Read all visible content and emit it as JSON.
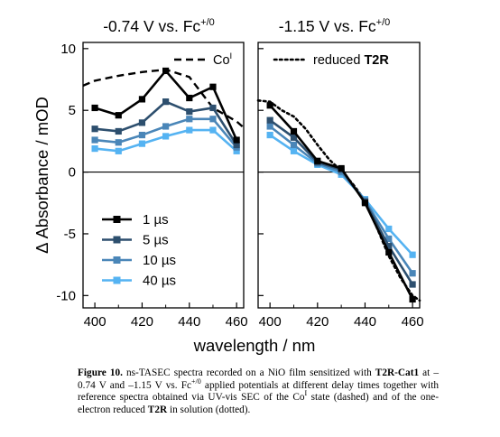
{
  "chart_data": [
    {
      "type": "line",
      "title": "-0.74 V vs. Fc",
      "title_sup": "+/0",
      "xlabel": "wavelength / nm",
      "ylabel": "Δ Absorbance / mOD",
      "xlim": [
        395,
        463
      ],
      "ylim": [
        -11,
        10.5
      ],
      "xticks": [
        400,
        420,
        440,
        460
      ],
      "yticks": [
        -10,
        -5,
        0,
        5,
        10
      ],
      "grid": false,
      "legend_position": "lower-left",
      "series": [
        {
          "name": "1 µs",
          "color": "#000000",
          "marker": "square",
          "x": [
            400,
            410,
            420,
            430,
            440,
            450,
            460
          ],
          "y": [
            5.2,
            4.6,
            5.9,
            8.2,
            6.0,
            6.9,
            2.6
          ]
        },
        {
          "name": "5 µs",
          "color": "#2d4f6e",
          "marker": "square",
          "x": [
            400,
            410,
            420,
            430,
            440,
            450,
            460
          ],
          "y": [
            3.5,
            3.3,
            4.0,
            5.7,
            4.9,
            5.2,
            2.2
          ]
        },
        {
          "name": "10 µs",
          "color": "#4a86b8",
          "marker": "square",
          "x": [
            400,
            410,
            420,
            430,
            440,
            450,
            460
          ],
          "y": [
            2.6,
            2.4,
            3.0,
            3.7,
            4.3,
            4.3,
            2.0
          ]
        },
        {
          "name": "40 µs",
          "color": "#55b3f2",
          "marker": "square",
          "x": [
            400,
            410,
            420,
            430,
            440,
            450,
            460
          ],
          "y": [
            1.9,
            1.7,
            2.3,
            2.9,
            3.4,
            3.4,
            1.7
          ]
        }
      ],
      "reference": {
        "name": "Co",
        "name_sup": "I",
        "style": "dashed",
        "color": "#000000",
        "x": [
          395,
          400,
          410,
          420,
          430,
          440,
          450,
          460,
          463
        ],
        "y": [
          7.0,
          7.4,
          7.8,
          8.1,
          8.3,
          7.7,
          5.2,
          4.1,
          3.6
        ]
      }
    },
    {
      "type": "line",
      "title": "-1.15 V vs. Fc",
      "title_sup": "+/0",
      "xlabel": "wavelength / nm",
      "xlim": [
        395,
        463
      ],
      "ylim": [
        -11,
        10.5
      ],
      "xticks": [
        400,
        420,
        440,
        460
      ],
      "yticks": [
        -10,
        -5,
        0,
        5,
        10
      ],
      "grid": false,
      "series": [
        {
          "name": "1 µs",
          "color": "#000000",
          "marker": "square",
          "x": [
            400,
            410,
            420,
            430,
            440,
            450,
            460
          ],
          "y": [
            5.4,
            3.3,
            0.9,
            0.3,
            -2.5,
            -6.5,
            -10.3
          ]
        },
        {
          "name": "5 µs",
          "color": "#2d4f6e",
          "marker": "square",
          "x": [
            400,
            410,
            420,
            430,
            440,
            450,
            460
          ],
          "y": [
            4.2,
            2.8,
            0.8,
            0.2,
            -2.4,
            -6.0,
            -9.1
          ]
        },
        {
          "name": "10 µs",
          "color": "#4a86b8",
          "marker": "square",
          "x": [
            400,
            410,
            420,
            430,
            440,
            450,
            460
          ],
          "y": [
            3.7,
            2.2,
            0.7,
            0.0,
            -2.3,
            -5.4,
            -8.2
          ]
        },
        {
          "name": "40 µs",
          "color": "#55b3f2",
          "marker": "square",
          "x": [
            400,
            410,
            420,
            430,
            440,
            450,
            460
          ],
          "y": [
            3.0,
            1.7,
            0.6,
            -0.2,
            -2.2,
            -4.6,
            -6.7
          ]
        }
      ],
      "reference": {
        "name": "reduced T2R",
        "style": "dotted",
        "color": "#000000",
        "x": [
          395,
          400,
          405,
          410,
          415,
          420,
          425,
          430,
          435,
          440,
          445,
          450,
          455,
          460,
          463
        ],
        "y": [
          5.8,
          5.7,
          5.0,
          4.5,
          3.5,
          2.2,
          1.0,
          0.1,
          -1.0,
          -2.3,
          -4.5,
          -6.8,
          -8.6,
          -10.0,
          -10.4
        ]
      }
    }
  ],
  "caption": {
    "label": "Figure 10.",
    "segments": [
      {
        "text": " ns-TASEC spectra recorded on a NiO film sensitized with "
      },
      {
        "text": "T2R-Cat1",
        "bold": true
      },
      {
        "text": " at –0.74 V and –1.15 V vs. Fc"
      },
      {
        "text": "+/0",
        "sup": true
      },
      {
        "text": " applied potentials at different delay times together with reference spectra obtained via UV-vis SEC of the Co"
      },
      {
        "text": "I",
        "sup": true
      },
      {
        "text": " state (dashed) and of the one-electron reduced "
      },
      {
        "text": "T2R",
        "bold": true
      },
      {
        "text": " in solution (dotted)."
      }
    ]
  }
}
